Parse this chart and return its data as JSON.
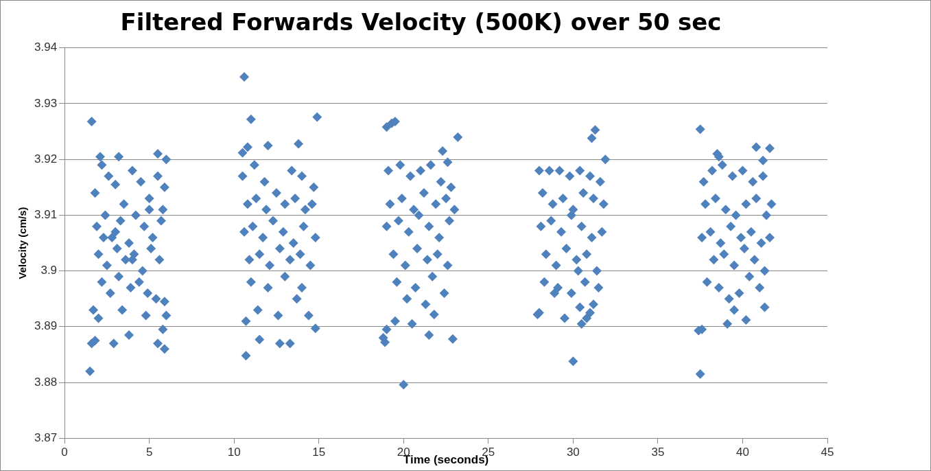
{
  "chart_data": {
    "type": "scatter",
    "title": "Filtered Forwards Velocity (500K) over 50 sec",
    "xlabel": "Time (seconds)",
    "ylabel": "Velocity (cm/s)",
    "xlim": [
      0,
      45
    ],
    "xticks": [
      0,
      5,
      10,
      15,
      20,
      25,
      30,
      35,
      40,
      45
    ],
    "ylim": [
      3.87,
      3.94
    ],
    "yticks": [
      3.87,
      3.88,
      3.89,
      3.9,
      3.91,
      3.92,
      3.93,
      3.94
    ],
    "grid": "y",
    "legend": false,
    "marker": "diamond",
    "series": [
      {
        "color": "#4f81bd",
        "x": [
          1.6,
          1.5,
          1.6,
          1.8,
          1.7,
          2.0,
          2.9,
          3.8,
          5.5,
          5.9,
          5.8,
          6.0,
          5.9,
          3.4,
          4.8,
          2.1,
          3.2,
          5.5,
          6.0,
          5.9,
          1.8,
          2.2,
          2.6,
          3.0,
          3.5,
          4.0,
          4.5,
          5.0,
          5.5,
          5.8,
          1.9,
          2.4,
          2.8,
          3.3,
          3.8,
          4.2,
          4.7,
          5.2,
          5.7,
          2.0,
          2.5,
          3.1,
          3.6,
          4.1,
          4.6,
          5.1,
          5.6,
          2.2,
          2.7,
          3.2,
          3.9,
          4.4,
          4.9,
          5.4,
          3.0,
          4.0,
          5.0,
          2.3,
          10.6,
          10.5,
          11.0,
          10.8,
          11.5,
          10.7,
          12.7,
          13.3,
          14.9,
          14.8,
          13.8,
          12.0,
          11.2,
          10.5,
          11.8,
          13.4,
          14.0,
          14.7,
          10.8,
          11.3,
          11.9,
          12.5,
          13.0,
          13.6,
          14.2,
          14.6,
          10.6,
          11.1,
          11.7,
          12.3,
          12.9,
          13.5,
          14.1,
          14.8,
          10.9,
          11.5,
          12.1,
          12.7,
          13.3,
          13.9,
          14.5,
          11.0,
          12.0,
          13.0,
          14.0,
          11.4,
          12.6,
          13.7,
          10.7,
          14.4,
          19.0,
          19.3,
          19.5,
          20.0,
          21.8,
          22.3,
          23.2,
          18.9,
          18.8,
          19.0,
          19.5,
          20.5,
          21.5,
          22.9,
          22.6,
          19.1,
          19.8,
          20.4,
          21.0,
          21.6,
          22.2,
          22.8,
          19.2,
          19.9,
          20.6,
          21.2,
          21.9,
          22.5,
          23.0,
          19.0,
          19.7,
          20.3,
          20.9,
          21.5,
          22.1,
          22.7,
          19.4,
          20.1,
          20.8,
          21.4,
          22.0,
          22.6,
          19.6,
          20.7,
          21.7,
          22.4,
          20.2,
          21.3,
          30.0,
          30.8,
          31.1,
          31.3,
          31.9,
          30.5,
          27.9,
          28.0,
          29.5,
          30.4,
          31.2,
          31.0,
          28.0,
          28.6,
          29.2,
          29.8,
          30.4,
          31.0,
          31.6,
          28.2,
          28.8,
          29.4,
          30.0,
          30.6,
          31.2,
          31.8,
          28.1,
          28.7,
          29.3,
          29.9,
          30.5,
          31.1,
          31.7,
          28.4,
          29.0,
          29.6,
          30.2,
          30.8,
          31.4,
          28.3,
          29.1,
          29.9,
          30.7,
          31.5,
          28.9,
          30.3,
          37.5,
          37.5,
          37.4,
          37.6,
          39.1,
          40.2,
          41.3,
          41.6,
          41.2,
          38.5,
          38.6,
          40.8,
          39.5,
          37.7,
          38.2,
          38.8,
          39.4,
          40.0,
          40.6,
          41.2,
          41.7,
          37.8,
          38.4,
          39.0,
          39.6,
          40.2,
          40.8,
          41.4,
          37.6,
          38.1,
          38.7,
          39.3,
          39.9,
          40.5,
          41.1,
          41.6,
          38.3,
          38.9,
          39.5,
          40.1,
          40.7,
          41.3,
          37.9,
          38.6,
          39.8,
          40.4,
          41.0,
          39.2
        ],
        "values": [
          3.9268,
          3.882,
          3.887,
          3.8875,
          3.893,
          3.8915,
          3.887,
          3.8885,
          3.887,
          3.886,
          3.8895,
          3.892,
          3.8945,
          3.893,
          3.892,
          3.9205,
          3.9205,
          3.921,
          3.92,
          3.915,
          3.914,
          3.919,
          3.917,
          3.9155,
          3.912,
          3.918,
          3.916,
          3.913,
          3.917,
          3.911,
          3.908,
          3.91,
          3.906,
          3.909,
          3.905,
          3.91,
          3.908,
          3.906,
          3.909,
          3.903,
          3.901,
          3.904,
          3.902,
          3.903,
          3.9,
          3.904,
          3.902,
          3.898,
          3.896,
          3.899,
          3.897,
          3.898,
          3.896,
          3.895,
          3.907,
          3.902,
          3.911,
          3.906,
          3.9348,
          3.9212,
          3.9272,
          3.9222,
          3.8877,
          3.8848,
          3.887,
          3.887,
          3.9276,
          3.8897,
          3.9228,
          3.9225,
          3.919,
          3.917,
          3.916,
          3.918,
          3.917,
          3.915,
          3.912,
          3.913,
          3.911,
          3.914,
          3.912,
          3.913,
          3.911,
          3.912,
          3.907,
          3.908,
          3.906,
          3.909,
          3.907,
          3.905,
          3.908,
          3.906,
          3.902,
          3.903,
          3.901,
          3.904,
          3.902,
          3.903,
          3.901,
          3.898,
          3.897,
          3.899,
          3.897,
          3.893,
          3.892,
          3.895,
          3.891,
          3.892,
          3.9258,
          3.9265,
          3.9268,
          3.8796,
          3.8922,
          3.9215,
          3.924,
          3.8872,
          3.888,
          3.8895,
          3.891,
          3.8905,
          3.8885,
          3.8878,
          3.9195,
          3.918,
          3.919,
          3.917,
          3.918,
          3.919,
          3.916,
          3.915,
          3.912,
          3.913,
          3.911,
          3.914,
          3.912,
          3.913,
          3.911,
          3.908,
          3.909,
          3.907,
          3.91,
          3.908,
          3.906,
          3.909,
          3.903,
          3.901,
          3.904,
          3.902,
          3.903,
          3.901,
          3.898,
          3.897,
          3.899,
          3.896,
          3.895,
          3.894,
          3.8838,
          3.8915,
          3.9238,
          3.9253,
          3.92,
          3.8905,
          3.8922,
          3.8925,
          3.8915,
          3.8935,
          3.894,
          3.8925,
          3.918,
          3.918,
          3.918,
          3.917,
          3.918,
          3.917,
          3.916,
          3.914,
          3.912,
          3.913,
          3.911,
          3.914,
          3.913,
          3.912,
          3.908,
          3.909,
          3.907,
          3.91,
          3.908,
          3.906,
          3.907,
          3.903,
          3.901,
          3.904,
          3.902,
          3.903,
          3.9,
          3.898,
          3.897,
          3.896,
          3.898,
          3.897,
          3.896,
          3.9,
          3.9254,
          3.8815,
          3.8893,
          3.8895,
          3.8905,
          3.8912,
          3.8935,
          3.922,
          3.9198,
          3.921,
          3.9205,
          3.9222,
          3.893,
          3.916,
          3.918,
          3.919,
          3.917,
          3.918,
          3.916,
          3.917,
          3.912,
          3.912,
          3.913,
          3.911,
          3.91,
          3.912,
          3.913,
          3.91,
          3.906,
          3.907,
          3.905,
          3.908,
          3.906,
          3.907,
          3.905,
          3.906,
          3.902,
          3.903,
          3.901,
          3.904,
          3.902,
          3.9,
          3.898,
          3.897,
          3.896,
          3.899,
          3.897,
          3.895
        ]
      }
    ]
  }
}
